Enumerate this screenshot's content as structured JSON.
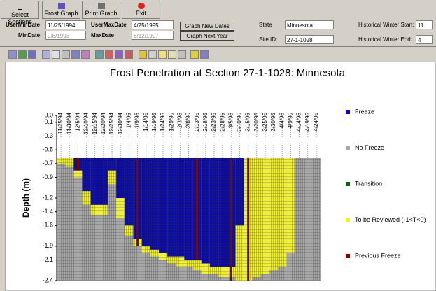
{
  "toolbar": {
    "buttons": [
      "Select Sections",
      "Frost Graph",
      "Print Graph",
      "Exit"
    ]
  },
  "form": {
    "user_min_date_label": "UserMinDate",
    "user_min_date": "11/25/1994",
    "min_date_label": "MinDate",
    "min_date": "9/8/1993",
    "user_max_date_label": "UserMaxDate",
    "user_max_date": "4/25/1995",
    "max_date_label": "MaxDate",
    "max_date": "6/12/1997",
    "graph_new_dates": "Graph New Dates",
    "graph_next_year": "Graph Next Year",
    "state_label": "State",
    "state": "Minnesota",
    "site_id_label": "Site ID:",
    "site_id": "27-1-1028",
    "winter_start_label": "Historical Winter Start:",
    "winter_start": "11",
    "winter_end_label": "Historical Winter End:",
    "winter_end": "4"
  },
  "chart_data": {
    "type": "frost",
    "title": "Frost Penetration at Section 27-1-1028: Minnesota",
    "y_label": "Depth (m)",
    "categories": [
      "11/25/94",
      "11/30/94",
      "12/5/94",
      "12/10/94",
      "12/15/94",
      "12/20/94",
      "12/25/94",
      "12/30/94",
      "1/4/95",
      "1/9/95",
      "1/14/95",
      "1/19/95",
      "1/24/95",
      "1/29/95",
      "2/3/95",
      "2/8/95",
      "2/13/95",
      "2/18/95",
      "2/23/95",
      "2/28/95",
      "3/5/95",
      "3/10/95",
      "3/15/95",
      "3/20/95",
      "3/25/95",
      "3/30/95",
      "4/4/95",
      "4/9/95",
      "4/14/95",
      "4/19/95",
      "4/24/95"
    ],
    "series": [
      {
        "name": "Freeze",
        "color": "#0a0aa8",
        "values": [
          null,
          null,
          -0.8,
          -1.1,
          -1.3,
          -1.3,
          -0.8,
          -1.2,
          -1.6,
          -1.8,
          -1.9,
          -1.95,
          -2.0,
          -2.05,
          -2.05,
          -2.1,
          -2.1,
          -2.15,
          -2.2,
          -2.2,
          -2.2,
          -1.6,
          null,
          null,
          null,
          null,
          null,
          null,
          null,
          null,
          null
        ]
      },
      {
        "name": "No Freeze",
        "color": "#a8a8a8"
      },
      {
        "name": "Transition",
        "color": "#086008"
      },
      {
        "name": "To be Reviewed (-1<T<0)",
        "color": "#f2f230",
        "values": [
          -0.7,
          -0.75,
          -0.9,
          -1.3,
          -1.45,
          -1.45,
          -1.0,
          -1.5,
          -1.75,
          -1.9,
          -2.0,
          -2.05,
          -2.1,
          -2.15,
          -2.2,
          -2.2,
          -2.25,
          -2.3,
          -2.3,
          -2.35,
          -2.35,
          -2.4,
          -2.4,
          -2.35,
          -2.3,
          -2.25,
          -2.2,
          -2.0,
          null,
          null,
          null
        ]
      },
      {
        "name": "Previous Freeze",
        "color": "#800000",
        "values": [
          null,
          null,
          -0.8,
          null,
          null,
          null,
          null,
          null,
          null,
          -1.9,
          null,
          null,
          null,
          null,
          null,
          null,
          -2.1,
          null,
          null,
          null,
          -2.4,
          null,
          -2.4,
          null,
          null,
          null,
          null,
          null,
          null,
          null,
          null
        ]
      }
    ],
    "ylim": [
      0,
      -2.4
    ],
    "yticks": [
      {
        "value": 0,
        "label": "0.0"
      },
      -0.1,
      -0.3,
      -0.5,
      -0.7,
      -0.9,
      -1.2,
      -1.4,
      -1.6,
      -1.9,
      -2.1,
      -2.4
    ]
  }
}
